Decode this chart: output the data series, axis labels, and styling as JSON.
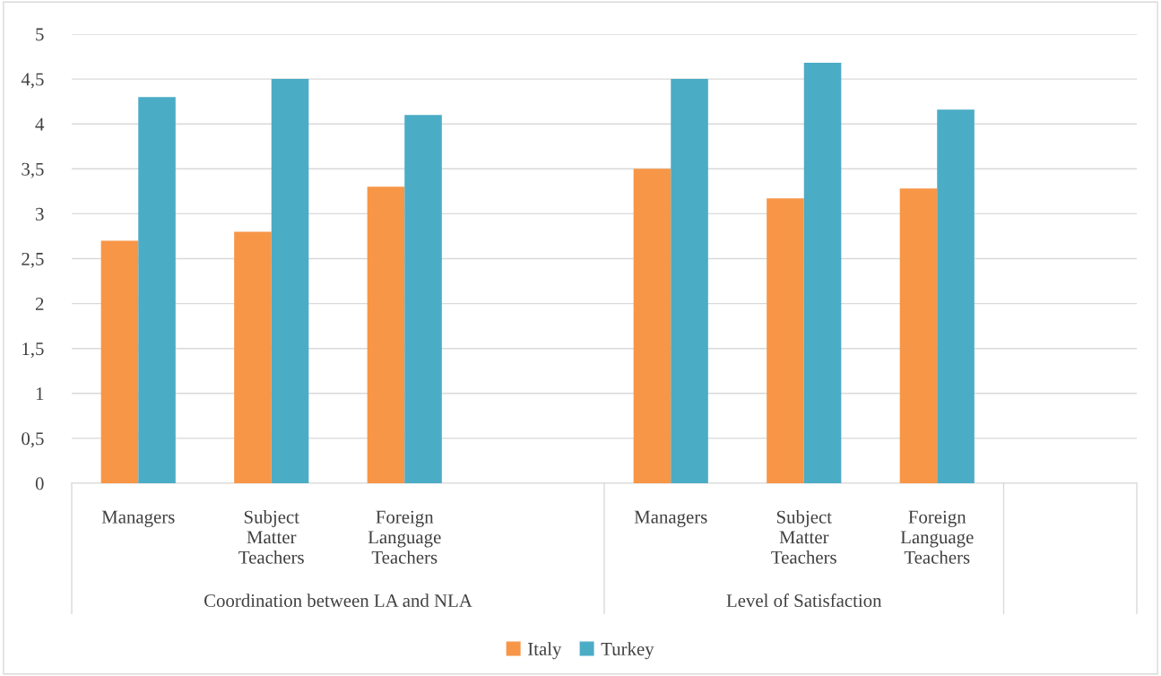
{
  "chart_data": {
    "type": "bar",
    "categories": [
      "Managers",
      "Subject\nMatter\nTeachers",
      "Foreign\nLanguage\nTeachers",
      null,
      "Managers",
      "Subject\nMatter\nTeachers",
      "Foreign\nLanguage\nTeachers",
      null
    ],
    "series": [
      {
        "name": "Italy",
        "color": "#f79646",
        "values": [
          2.7,
          2.8,
          3.3,
          null,
          3.5,
          3.17,
          3.28,
          null
        ]
      },
      {
        "name": "Turkey",
        "color": "#4bacc6",
        "values": [
          4.3,
          4.5,
          4.1,
          null,
          4.5,
          4.68,
          4.16,
          null
        ]
      }
    ],
    "annotations": [
      "Coordination between LA and NLA",
      "Level of Satisfaction"
    ],
    "ylim": [
      0,
      5
    ],
    "yticks": [
      0,
      {
        "value": 0.5,
        "label": "0,5"
      },
      1,
      {
        "value": 1.5,
        "label": "1,5"
      },
      2,
      {
        "value": 2.5,
        "label": "2,5"
      },
      3,
      {
        "value": 3.5,
        "label": "3,5"
      },
      4,
      {
        "value": 4.5,
        "label": "4,5"
      },
      5
    ],
    "grid": "y",
    "legend": "bottom"
  }
}
